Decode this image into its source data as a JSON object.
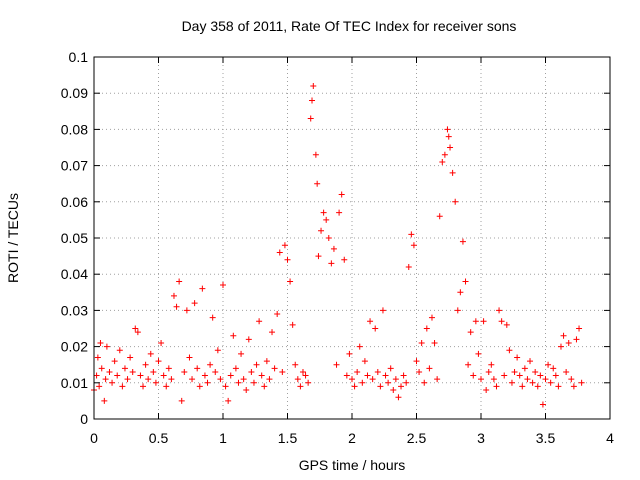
{
  "chart_data": {
    "type": "scatter",
    "title": "Day 358 of 2011, Rate Of TEC Index for receiver sons",
    "xlabel": "GPS time / hours",
    "ylabel": "ROTI / TECUs",
    "xlim": [
      0,
      4
    ],
    "ylim": [
      0,
      0.1
    ],
    "xticks": [
      0,
      0.5,
      1,
      1.5,
      2,
      2.5,
      3,
      3.5,
      4
    ],
    "xtick_labels": [
      "0",
      "0.5",
      "1",
      "1.5",
      "2",
      "2.5",
      "3",
      "3.5",
      "4"
    ],
    "yticks": [
      0,
      0.01,
      0.02,
      0.03,
      0.04,
      0.05,
      0.06,
      0.07,
      0.08,
      0.09,
      0.1
    ],
    "ytick_labels": [
      "0",
      "0.01",
      "0.02",
      "0.03",
      "0.04",
      "0.05",
      "0.06",
      "0.07",
      "0.08",
      "0.09",
      "0.1"
    ],
    "grid": true,
    "marker": "plus",
    "color": "#ff0000",
    "series": [
      {
        "name": "ROTI",
        "points": [
          [
            0.0,
            0.008
          ],
          [
            0.02,
            0.012
          ],
          [
            0.03,
            0.017
          ],
          [
            0.04,
            0.009
          ],
          [
            0.05,
            0.021
          ],
          [
            0.06,
            0.014
          ],
          [
            0.08,
            0.005
          ],
          [
            0.09,
            0.011
          ],
          [
            0.1,
            0.02
          ],
          [
            0.12,
            0.013
          ],
          [
            0.14,
            0.01
          ],
          [
            0.16,
            0.016
          ],
          [
            0.18,
            0.012
          ],
          [
            0.2,
            0.019
          ],
          [
            0.22,
            0.009
          ],
          [
            0.24,
            0.014
          ],
          [
            0.26,
            0.011
          ],
          [
            0.28,
            0.017
          ],
          [
            0.3,
            0.013
          ],
          [
            0.32,
            0.025
          ],
          [
            0.34,
            0.024
          ],
          [
            0.36,
            0.012
          ],
          [
            0.38,
            0.009
          ],
          [
            0.4,
            0.015
          ],
          [
            0.42,
            0.011
          ],
          [
            0.44,
            0.018
          ],
          [
            0.46,
            0.013
          ],
          [
            0.48,
            0.01
          ],
          [
            0.5,
            0.016
          ],
          [
            0.52,
            0.021
          ],
          [
            0.54,
            0.012
          ],
          [
            0.56,
            0.009
          ],
          [
            0.58,
            0.014
          ],
          [
            0.6,
            0.011
          ],
          [
            0.62,
            0.034
          ],
          [
            0.64,
            0.031
          ],
          [
            0.66,
            0.038
          ],
          [
            0.68,
            0.005
          ],
          [
            0.7,
            0.013
          ],
          [
            0.72,
            0.03
          ],
          [
            0.74,
            0.017
          ],
          [
            0.76,
            0.011
          ],
          [
            0.78,
            0.032
          ],
          [
            0.8,
            0.014
          ],
          [
            0.82,
            0.009
          ],
          [
            0.84,
            0.036
          ],
          [
            0.86,
            0.012
          ],
          [
            0.88,
            0.01
          ],
          [
            0.9,
            0.015
          ],
          [
            0.92,
            0.028
          ],
          [
            0.94,
            0.013
          ],
          [
            0.96,
            0.019
          ],
          [
            0.98,
            0.011
          ],
          [
            1.0,
            0.037
          ],
          [
            1.02,
            0.009
          ],
          [
            1.04,
            0.005
          ],
          [
            1.06,
            0.012
          ],
          [
            1.08,
            0.023
          ],
          [
            1.1,
            0.014
          ],
          [
            1.12,
            0.01
          ],
          [
            1.14,
            0.018
          ],
          [
            1.16,
            0.011
          ],
          [
            1.18,
            0.008
          ],
          [
            1.2,
            0.022
          ],
          [
            1.22,
            0.013
          ],
          [
            1.24,
            0.01
          ],
          [
            1.26,
            0.015
          ],
          [
            1.28,
            0.027
          ],
          [
            1.3,
            0.012
          ],
          [
            1.32,
            0.009
          ],
          [
            1.34,
            0.016
          ],
          [
            1.36,
            0.011
          ],
          [
            1.38,
            0.024
          ],
          [
            1.4,
            0.014
          ],
          [
            1.42,
            0.029
          ],
          [
            1.44,
            0.046
          ],
          [
            1.46,
            0.013
          ],
          [
            1.48,
            0.048
          ],
          [
            1.5,
            0.044
          ],
          [
            1.52,
            0.038
          ],
          [
            1.54,
            0.026
          ],
          [
            1.56,
            0.015
          ],
          [
            1.58,
            0.011
          ],
          [
            1.6,
            0.009
          ],
          [
            1.62,
            0.013
          ],
          [
            1.64,
            0.012
          ],
          [
            1.66,
            0.01
          ],
          [
            1.68,
            0.083
          ],
          [
            1.69,
            0.088
          ],
          [
            1.7,
            0.092
          ],
          [
            1.72,
            0.073
          ],
          [
            1.73,
            0.065
          ],
          [
            1.74,
            0.045
          ],
          [
            1.76,
            0.052
          ],
          [
            1.78,
            0.057
          ],
          [
            1.8,
            0.055
          ],
          [
            1.82,
            0.05
          ],
          [
            1.84,
            0.043
          ],
          [
            1.86,
            0.047
          ],
          [
            1.88,
            0.015
          ],
          [
            1.9,
            0.057
          ],
          [
            1.92,
            0.062
          ],
          [
            1.94,
            0.044
          ],
          [
            1.96,
            0.012
          ],
          [
            1.98,
            0.018
          ],
          [
            2.0,
            0.011
          ],
          [
            2.02,
            0.009
          ],
          [
            2.04,
            0.013
          ],
          [
            2.06,
            0.02
          ],
          [
            2.08,
            0.01
          ],
          [
            2.1,
            0.016
          ],
          [
            2.12,
            0.012
          ],
          [
            2.14,
            0.027
          ],
          [
            2.16,
            0.011
          ],
          [
            2.18,
            0.025
          ],
          [
            2.2,
            0.013
          ],
          [
            2.22,
            0.009
          ],
          [
            2.24,
            0.03
          ],
          [
            2.26,
            0.012
          ],
          [
            2.28,
            0.01
          ],
          [
            2.3,
            0.014
          ],
          [
            2.32,
            0.008
          ],
          [
            2.34,
            0.011
          ],
          [
            2.36,
            0.006
          ],
          [
            2.38,
            0.009
          ],
          [
            2.4,
            0.012
          ],
          [
            2.42,
            0.01
          ],
          [
            2.44,
            0.042
          ],
          [
            2.46,
            0.051
          ],
          [
            2.48,
            0.048
          ],
          [
            2.5,
            0.016
          ],
          [
            2.52,
            0.013
          ],
          [
            2.54,
            0.021
          ],
          [
            2.56,
            0.01
          ],
          [
            2.58,
            0.025
          ],
          [
            2.6,
            0.014
          ],
          [
            2.62,
            0.028
          ],
          [
            2.64,
            0.021
          ],
          [
            2.66,
            0.011
          ],
          [
            2.68,
            0.056
          ],
          [
            2.7,
            0.071
          ],
          [
            2.72,
            0.073
          ],
          [
            2.74,
            0.08
          ],
          [
            2.75,
            0.078
          ],
          [
            2.76,
            0.075
          ],
          [
            2.78,
            0.068
          ],
          [
            2.8,
            0.06
          ],
          [
            2.82,
            0.03
          ],
          [
            2.84,
            0.035
          ],
          [
            2.86,
            0.049
          ],
          [
            2.88,
            0.038
          ],
          [
            2.9,
            0.015
          ],
          [
            2.92,
            0.024
          ],
          [
            2.94,
            0.012
          ],
          [
            2.96,
            0.027
          ],
          [
            2.98,
            0.018
          ],
          [
            3.0,
            0.011
          ],
          [
            3.02,
            0.027
          ],
          [
            3.04,
            0.008
          ],
          [
            3.06,
            0.013
          ],
          [
            3.08,
            0.015
          ],
          [
            3.1,
            0.011
          ],
          [
            3.12,
            0.009
          ],
          [
            3.14,
            0.03
          ],
          [
            3.16,
            0.027
          ],
          [
            3.18,
            0.012
          ],
          [
            3.2,
            0.026
          ],
          [
            3.22,
            0.019
          ],
          [
            3.24,
            0.01
          ],
          [
            3.26,
            0.013
          ],
          [
            3.28,
            0.017
          ],
          [
            3.3,
            0.012
          ],
          [
            3.32,
            0.009
          ],
          [
            3.34,
            0.014
          ],
          [
            3.36,
            0.011
          ],
          [
            3.38,
            0.016
          ],
          [
            3.4,
            0.01
          ],
          [
            3.42,
            0.013
          ],
          [
            3.44,
            0.009
          ],
          [
            3.46,
            0.012
          ],
          [
            3.48,
            0.004
          ],
          [
            3.5,
            0.011
          ],
          [
            3.52,
            0.015
          ],
          [
            3.54,
            0.01
          ],
          [
            3.56,
            0.014
          ],
          [
            3.58,
            0.012
          ],
          [
            3.6,
            0.009
          ],
          [
            3.62,
            0.02
          ],
          [
            3.64,
            0.023
          ],
          [
            3.66,
            0.013
          ],
          [
            3.68,
            0.021
          ],
          [
            3.7,
            0.011
          ],
          [
            3.72,
            0.009
          ],
          [
            3.74,
            0.022
          ],
          [
            3.76,
            0.025
          ],
          [
            3.78,
            0.01
          ]
        ]
      }
    ]
  }
}
